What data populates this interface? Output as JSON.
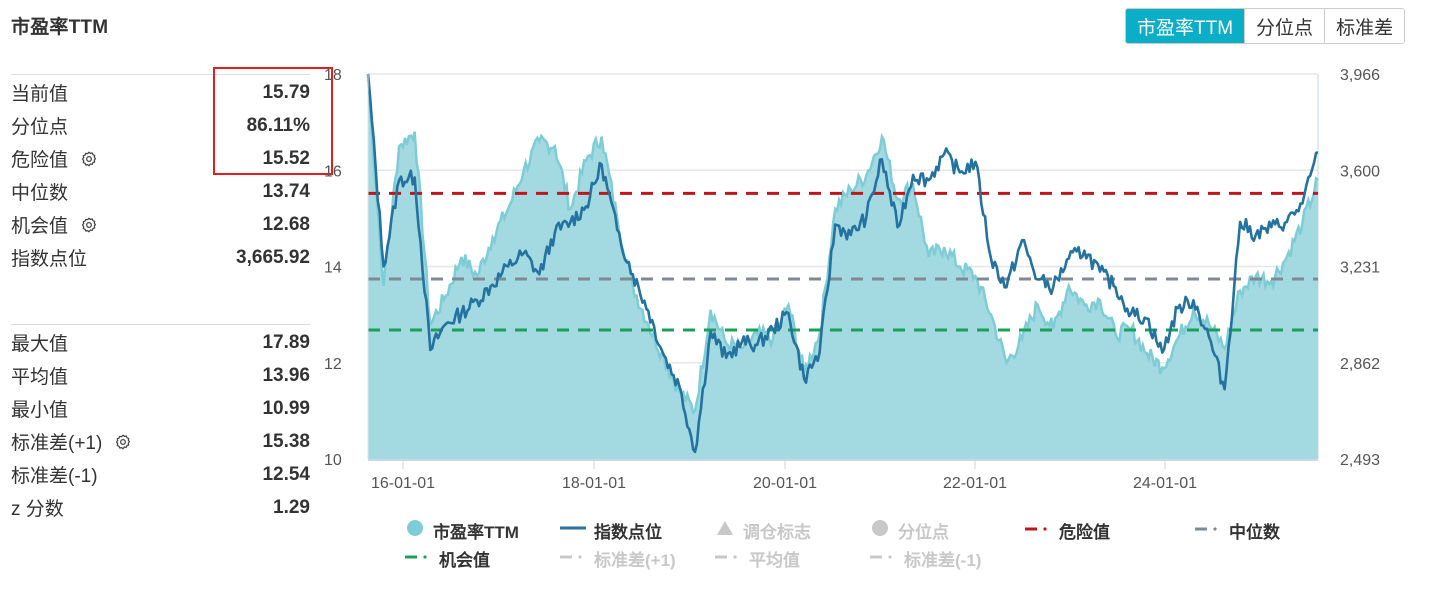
{
  "title": "市盈率TTM",
  "tabs": [
    {
      "label": "市盈率TTM",
      "active": true
    },
    {
      "label": "分位点",
      "active": false
    },
    {
      "label": "标准差",
      "active": false
    }
  ],
  "stats_top": [
    {
      "label": "当前值",
      "value": "15.79",
      "gear": false
    },
    {
      "label": "分位点",
      "value": "86.11%",
      "gear": false
    },
    {
      "label": "危险值",
      "value": "15.52",
      "gear": true
    },
    {
      "label": "中位数",
      "value": "13.74",
      "gear": false
    },
    {
      "label": "机会值",
      "value": "12.68",
      "gear": true
    },
    {
      "label": "指数点位",
      "value": "3,665.92",
      "gear": false
    }
  ],
  "stats_bottom": [
    {
      "label": "最大值",
      "value": "17.89",
      "gear": false
    },
    {
      "label": "平均值",
      "value": "13.96",
      "gear": false
    },
    {
      "label": "最小值",
      "value": "10.99",
      "gear": false
    },
    {
      "label": "标准差(+1)",
      "value": "15.38",
      "gear": true
    },
    {
      "label": "标准差(-1)",
      "value": "12.54",
      "gear": false
    },
    {
      "label": "z 分数",
      "value": "1.29",
      "gear": false
    }
  ],
  "colors": {
    "area_fill": "#a3d9e1",
    "area_line": "#7ecdd6",
    "index_line": "#23729f",
    "danger": "#c0151b",
    "median": "#808a94",
    "opportunity": "#1aa05a",
    "accent": "#0aaec6",
    "grid": "#e6e6e6",
    "axis_text": "#555555",
    "legend_off": "#c8c8c8"
  },
  "legend": [
    {
      "label": "市盈率TTM",
      "symbol": "circle",
      "color": "#7ecdd6",
      "on": true
    },
    {
      "label": "指数点位",
      "symbol": "line",
      "color": "#23729f",
      "on": true
    },
    {
      "label": "调仓标志",
      "symbol": "triangle",
      "color": "#c8c8c8",
      "on": false
    },
    {
      "label": "分位点",
      "symbol": "circle",
      "color": "#c8c8c8",
      "on": false
    },
    {
      "label": "危险值",
      "symbol": "dashdot",
      "color": "#c0151b",
      "on": true
    },
    {
      "label": "中位数",
      "symbol": "dashdot",
      "color": "#808a94",
      "on": true
    },
    {
      "label": "机会值",
      "symbol": "dashdot",
      "color": "#1aa05a",
      "on": true
    },
    {
      "label": "标准差(+1)",
      "symbol": "dashdot",
      "color": "#c8c8c8",
      "on": false
    },
    {
      "label": "平均值",
      "symbol": "dashdot",
      "color": "#c8c8c8",
      "on": false
    },
    {
      "label": "标准差(-1)",
      "symbol": "dashdot",
      "color": "#c8c8c8",
      "on": false
    }
  ],
  "chart_data": {
    "type": "area",
    "title": "市盈率TTM",
    "xlabel": "",
    "ylabel_left": "市盈率TTM",
    "ylabel_right": "指数点位",
    "x_ticks": [
      "16-01-01",
      "18-01-01",
      "20-01-01",
      "22-01-01",
      "24-01-01"
    ],
    "y_left_ticks": [
      10,
      12,
      14,
      16,
      18
    ],
    "y_left_range": [
      10,
      18
    ],
    "y_right_ticks": [
      "2,493",
      "2,862",
      "3,231",
      "3,600",
      "3,966"
    ],
    "y_right_range": [
      2493,
      3966
    ],
    "grid": true,
    "legend_position": "bottom",
    "x": [
      "2015-07",
      "2015-09",
      "2015-11",
      "2016-01",
      "2016-03",
      "2016-05",
      "2016-07",
      "2016-09",
      "2016-11",
      "2017-01",
      "2017-03",
      "2017-05",
      "2017-07",
      "2017-09",
      "2017-11",
      "2018-01",
      "2018-03",
      "2018-05",
      "2018-07",
      "2018-09",
      "2018-11",
      "2019-01",
      "2019-03",
      "2019-05",
      "2019-07",
      "2019-09",
      "2019-11",
      "2020-01",
      "2020-03",
      "2020-05",
      "2020-07",
      "2020-09",
      "2020-11",
      "2021-01",
      "2021-03",
      "2021-05",
      "2021-07",
      "2021-09",
      "2021-11",
      "2022-01",
      "2022-03",
      "2022-05",
      "2022-07",
      "2022-09",
      "2022-11",
      "2023-01",
      "2023-03",
      "2023-05",
      "2023-07",
      "2023-09",
      "2023-11",
      "2024-01",
      "2024-03",
      "2024-05",
      "2024-07",
      "2024-09",
      "2024-11",
      "2025-01",
      "2025-03",
      "2025-05",
      "2025-07",
      "2025-09"
    ],
    "series": [
      {
        "name": "市盈率TTM",
        "axis": "left",
        "values": [
          17.9,
          13.6,
          16.5,
          16.8,
          12.8,
          13.4,
          14.2,
          13.8,
          14.6,
          15.2,
          16.0,
          16.6,
          16.5,
          15.2,
          16.2,
          16.7,
          15.0,
          13.6,
          12.8,
          12.1,
          11.4,
          11.0,
          13.1,
          12.4,
          12.3,
          12.6,
          12.5,
          13.2,
          11.8,
          12.6,
          15.2,
          15.6,
          15.9,
          16.7,
          15.4,
          15.7,
          14.2,
          14.4,
          14.0,
          13.8,
          13.0,
          12.0,
          12.5,
          13.2,
          12.7,
          13.6,
          13.2,
          13.3,
          12.6,
          12.7,
          12.2,
          11.9,
          12.5,
          13.1,
          12.8,
          12.3,
          13.5,
          13.8,
          13.7,
          14.2,
          14.9,
          15.8
        ]
      },
      {
        "name": "指数点位",
        "axis": "right",
        "values": [
          3966,
          3230,
          3560,
          3570,
          2910,
          3010,
          3050,
          3100,
          3160,
          3230,
          3280,
          3200,
          3360,
          3400,
          3460,
          3620,
          3370,
          3200,
          3060,
          2890,
          2770,
          2520,
          2980,
          2880,
          2940,
          2930,
          2990,
          3050,
          2800,
          2900,
          3390,
          3350,
          3420,
          3640,
          3380,
          3580,
          3560,
          3660,
          3590,
          3630,
          3260,
          3150,
          3330,
          3180,
          3150,
          3260,
          3290,
          3210,
          3150,
          3050,
          3030,
          2900,
          3070,
          3100,
          2960,
          2760,
          3400,
          3350,
          3380,
          3400,
          3470,
          3666
        ]
      },
      {
        "name": "危险值",
        "axis": "left",
        "values": 15.52
      },
      {
        "name": "中位数",
        "axis": "left",
        "values": 13.74
      },
      {
        "name": "机会值",
        "axis": "left",
        "values": 12.68
      }
    ]
  }
}
